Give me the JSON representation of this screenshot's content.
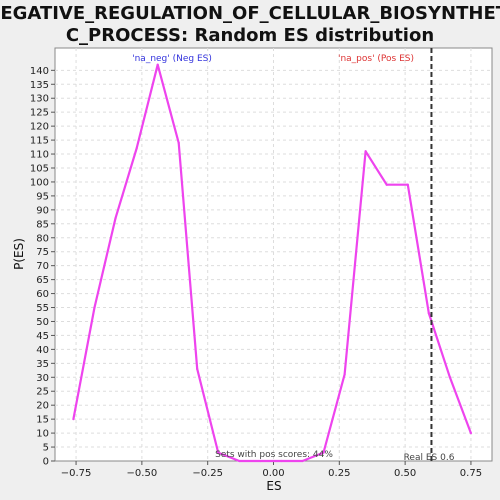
{
  "chart_data": {
    "type": "line",
    "title_line1": "NEGATIVE_REGULATION_OF_CELLULAR_BIOSYNTHETI",
    "title_line2": "C_PROCESS: Random ES distribution",
    "xlabel": "ES",
    "ylabel": "P(ES)",
    "xlim": [
      -0.83,
      0.83
    ],
    "ylim": [
      0,
      148
    ],
    "x_ticks": [
      -0.75,
      -0.5,
      -0.25,
      0.0,
      0.25,
      0.5,
      0.75
    ],
    "x_tick_labels": [
      "−0.75",
      "−0.50",
      "−0.25",
      "0.00",
      "0.25",
      "0.50",
      "0.75"
    ],
    "y_ticks": [
      0,
      5,
      10,
      15,
      20,
      25,
      30,
      35,
      40,
      45,
      50,
      55,
      60,
      65,
      70,
      75,
      80,
      85,
      90,
      95,
      100,
      105,
      110,
      115,
      120,
      125,
      130,
      135,
      140
    ],
    "grid": true,
    "series": [
      {
        "color": "#ee44ee",
        "x": [
          -0.76,
          -0.68,
          -0.6,
          -0.52,
          -0.44,
          -0.36,
          -0.29,
          -0.21,
          -0.13,
          -0.05,
          0.03,
          0.11,
          0.19,
          0.27,
          0.35,
          0.43,
          0.51,
          0.59,
          0.67,
          0.75
        ],
        "y": [
          15,
          55,
          87,
          112,
          142,
          114,
          33,
          3,
          0,
          0,
          0,
          0,
          3,
          31,
          111,
          99,
          99,
          53,
          30,
          10
        ]
      }
    ],
    "annotations": {
      "neg_label": "'na_neg' (Neg ES)",
      "neg_color": "#3333dd",
      "pos_label": "'na_pos' (Pos ES)",
      "pos_color": "#dd3333",
      "sets_text": "Sets with pos scores: 44%",
      "real_es_text": "Real ES 0.6",
      "real_es_value": 0.6
    }
  }
}
